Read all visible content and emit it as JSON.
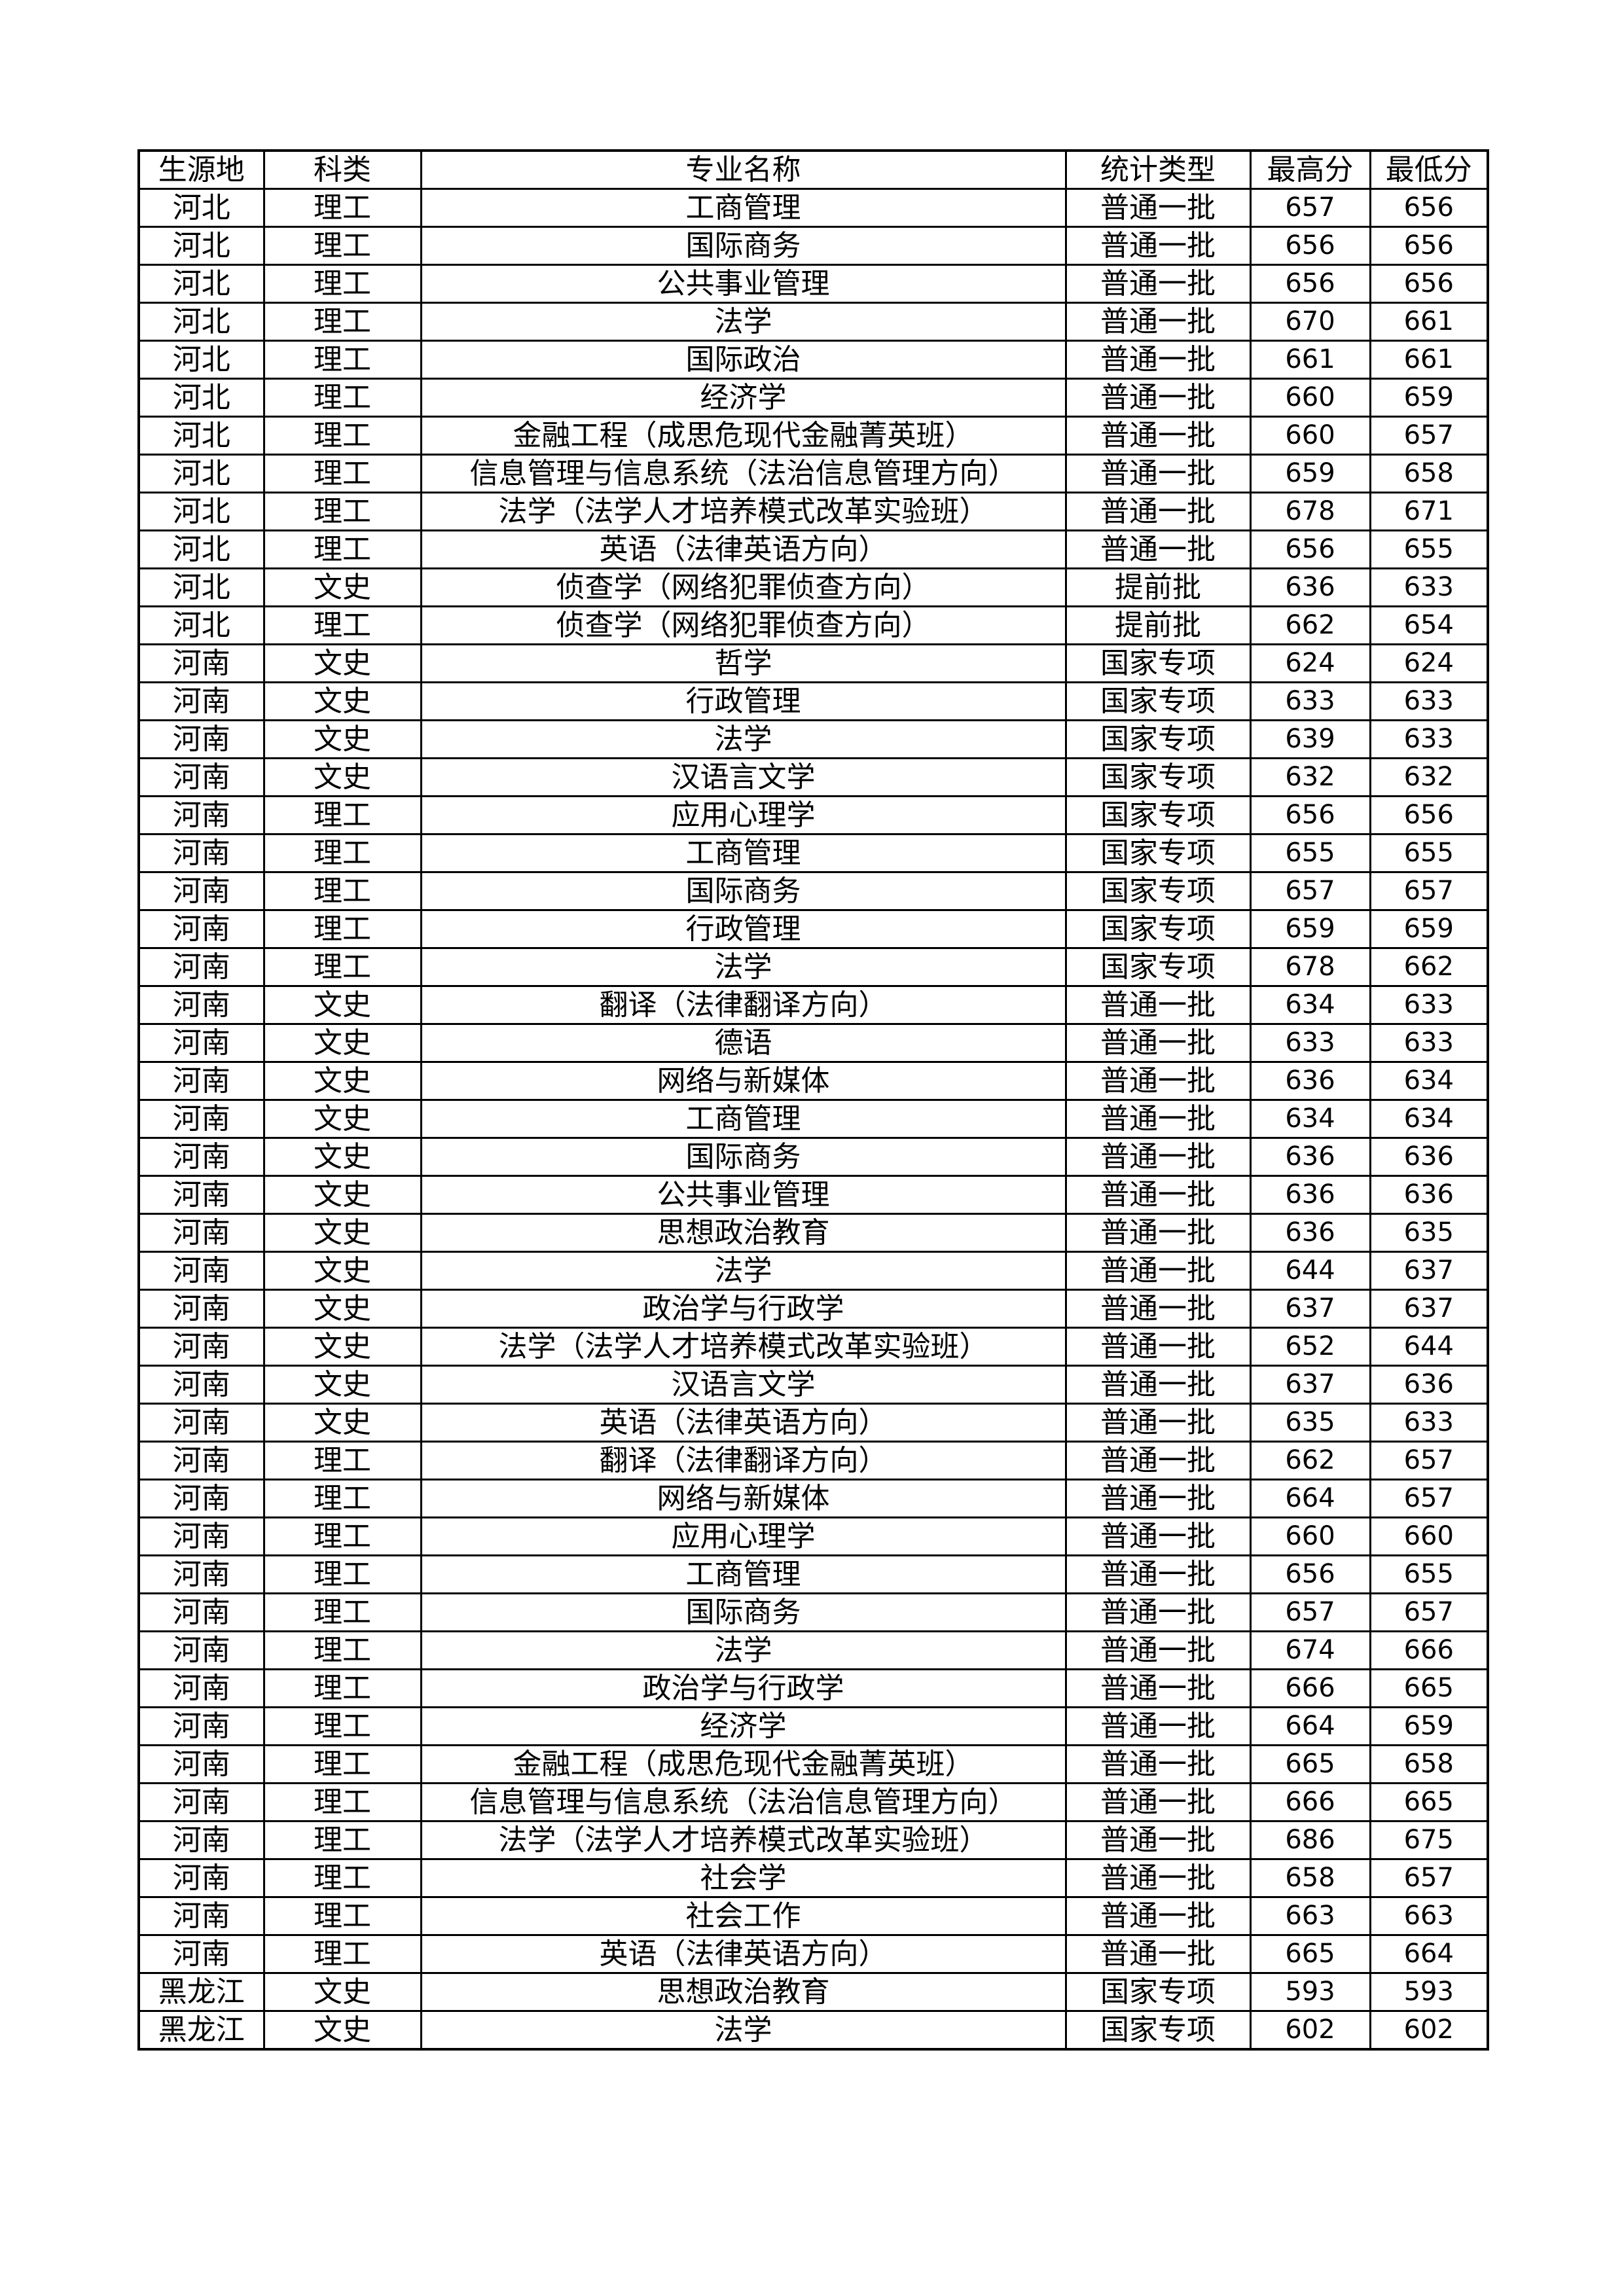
{
  "headers": [
    "生源地",
    "科类",
    "专业名称",
    "统计类型",
    "最高分",
    "最低分"
  ],
  "rows": [
    [
      "河北",
      "理工",
      "工商管理",
      "普通一批",
      "657",
      "656"
    ],
    [
      "河北",
      "理工",
      "国际商务",
      "普通一批",
      "656",
      "656"
    ],
    [
      "河北",
      "理工",
      "公共事业管理",
      "普通一批",
      "656",
      "656"
    ],
    [
      "河北",
      "理工",
      "法学",
      "普通一批",
      "670",
      "661"
    ],
    [
      "河北",
      "理工",
      "国际政治",
      "普通一批",
      "661",
      "661"
    ],
    [
      "河北",
      "理工",
      "经济学",
      "普通一批",
      "660",
      "659"
    ],
    [
      "河北",
      "理工",
      "金融工程（成思危现代金融菁英班）",
      "普通一批",
      "660",
      "657"
    ],
    [
      "河北",
      "理工",
      "信息管理与信息系统（法治信息管理方向）",
      "普通一批",
      "659",
      "658"
    ],
    [
      "河北",
      "理工",
      "法学（法学人才培养模式改革实验班）",
      "普通一批",
      "678",
      "671"
    ],
    [
      "河北",
      "理工",
      "英语（法律英语方向）",
      "普通一批",
      "656",
      "655"
    ],
    [
      "河北",
      "文史",
      "侦查学（网络犯罪侦查方向）",
      "提前批",
      "636",
      "633"
    ],
    [
      "河北",
      "理工",
      "侦查学（网络犯罪侦查方向）",
      "提前批",
      "662",
      "654"
    ],
    [
      "河南",
      "文史",
      "哲学",
      "国家专项",
      "624",
      "624"
    ],
    [
      "河南",
      "文史",
      "行政管理",
      "国家专项",
      "633",
      "633"
    ],
    [
      "河南",
      "文史",
      "法学",
      "国家专项",
      "639",
      "633"
    ],
    [
      "河南",
      "文史",
      "汉语言文学",
      "国家专项",
      "632",
      "632"
    ],
    [
      "河南",
      "理工",
      "应用心理学",
      "国家专项",
      "656",
      "656"
    ],
    [
      "河南",
      "理工",
      "工商管理",
      "国家专项",
      "655",
      "655"
    ],
    [
      "河南",
      "理工",
      "国际商务",
      "国家专项",
      "657",
      "657"
    ],
    [
      "河南",
      "理工",
      "行政管理",
      "国家专项",
      "659",
      "659"
    ],
    [
      "河南",
      "理工",
      "法学",
      "国家专项",
      "678",
      "662"
    ],
    [
      "河南",
      "文史",
      "翻译（法律翻译方向）",
      "普通一批",
      "634",
      "633"
    ],
    [
      "河南",
      "文史",
      "德语",
      "普通一批",
      "633",
      "633"
    ],
    [
      "河南",
      "文史",
      "网络与新媒体",
      "普通一批",
      "636",
      "634"
    ],
    [
      "河南",
      "文史",
      "工商管理",
      "普通一批",
      "634",
      "634"
    ],
    [
      "河南",
      "文史",
      "国际商务",
      "普通一批",
      "636",
      "636"
    ],
    [
      "河南",
      "文史",
      "公共事业管理",
      "普通一批",
      "636",
      "636"
    ],
    [
      "河南",
      "文史",
      "思想政治教育",
      "普通一批",
      "636",
      "635"
    ],
    [
      "河南",
      "文史",
      "法学",
      "普通一批",
      "644",
      "637"
    ],
    [
      "河南",
      "文史",
      "政治学与行政学",
      "普通一批",
      "637",
      "637"
    ],
    [
      "河南",
      "文史",
      "法学（法学人才培养模式改革实验班）",
      "普通一批",
      "652",
      "644"
    ],
    [
      "河南",
      "文史",
      "汉语言文学",
      "普通一批",
      "637",
      "636"
    ],
    [
      "河南",
      "文史",
      "英语（法律英语方向）",
      "普通一批",
      "635",
      "633"
    ],
    [
      "河南",
      "理工",
      "翻译（法律翻译方向）",
      "普通一批",
      "662",
      "657"
    ],
    [
      "河南",
      "理工",
      "网络与新媒体",
      "普通一批",
      "664",
      "657"
    ],
    [
      "河南",
      "理工",
      "应用心理学",
      "普通一批",
      "660",
      "660"
    ],
    [
      "河南",
      "理工",
      "工商管理",
      "普通一批",
      "656",
      "655"
    ],
    [
      "河南",
      "理工",
      "国际商务",
      "普通一批",
      "657",
      "657"
    ],
    [
      "河南",
      "理工",
      "法学",
      "普通一批",
      "674",
      "666"
    ],
    [
      "河南",
      "理工",
      "政治学与行政学",
      "普通一批",
      "666",
      "665"
    ],
    [
      "河南",
      "理工",
      "经济学",
      "普通一批",
      "664",
      "659"
    ],
    [
      "河南",
      "理工",
      "金融工程（成思危现代金融菁英班）",
      "普通一批",
      "665",
      "658"
    ],
    [
      "河南",
      "理工",
      "信息管理与信息系统（法治信息管理方向）",
      "普通一批",
      "666",
      "665"
    ],
    [
      "河南",
      "理工",
      "法学（法学人才培养模式改革实验班）",
      "普通一批",
      "686",
      "675"
    ],
    [
      "河南",
      "理工",
      "社会学",
      "普通一批",
      "658",
      "657"
    ],
    [
      "河南",
      "理工",
      "社会工作",
      "普通一批",
      "663",
      "663"
    ],
    [
      "河南",
      "理工",
      "英语（法律英语方向）",
      "普通一批",
      "665",
      "664"
    ],
    [
      "黑龙江",
      "文史",
      "思想政治教育",
      "国家专项",
      "593",
      "593"
    ],
    [
      "黑龙江",
      "文史",
      "法学",
      "国家专项",
      "602",
      "602"
    ]
  ]
}
